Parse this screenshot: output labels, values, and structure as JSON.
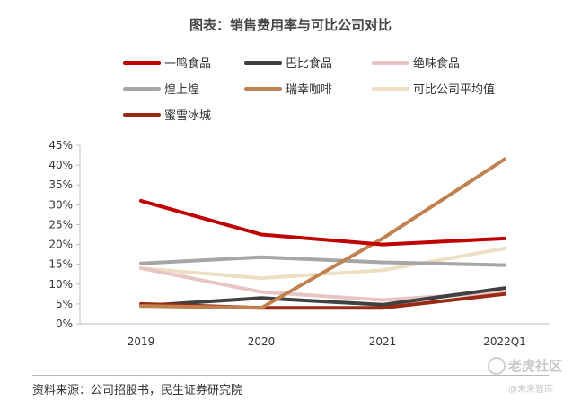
{
  "title": "图表：销售费用率与可比公司对比",
  "source": "资料来源：公司招股书，民生证券研究院",
  "watermark": {
    "main": "老虎社区",
    "sub": "@未来智库",
    "icon": "tiger-logo-icon"
  },
  "chart_data": {
    "type": "line",
    "categories": [
      "2019",
      "2020",
      "2021",
      "2022Q1"
    ],
    "ylim": [
      0,
      45
    ],
    "yticks": [
      "0%",
      "5%",
      "10%",
      "15%",
      "20%",
      "25%",
      "30%",
      "35%",
      "40%",
      "45%"
    ],
    "grid": false,
    "legend_position": "top",
    "series": [
      {
        "name": "一鸣食品",
        "color": "#c00000",
        "values": [
          31,
          22.5,
          20,
          21.5
        ]
      },
      {
        "name": "巴比食品",
        "color": "#404040",
        "values": [
          4.5,
          6.5,
          4.8,
          9
        ]
      },
      {
        "name": "绝味食品",
        "color": "#e8c4c4",
        "values": [
          14,
          8,
          6,
          8
        ]
      },
      {
        "name": "煌上煌",
        "color": "#a6a6a6",
        "values": [
          15.2,
          16.8,
          15.5,
          14.8
        ]
      },
      {
        "name": "瑞幸咖啡",
        "color": "#c0804f",
        "values": [
          4.5,
          4,
          21.5,
          41.5
        ]
      },
      {
        "name": "可比公司平均值",
        "color": "#eedfc2",
        "values": [
          14,
          11.5,
          13.5,
          19
        ]
      },
      {
        "name": "蜜雪冰城",
        "color": "#9b2a12",
        "values": [
          5,
          4,
          4,
          7.5
        ]
      }
    ]
  }
}
